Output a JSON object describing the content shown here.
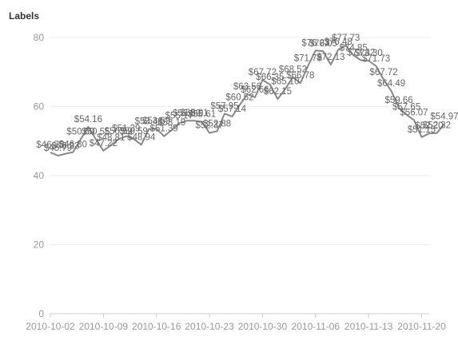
{
  "chart_data": {
    "type": "line",
    "title": "Labels",
    "xlabel": "",
    "ylabel": "",
    "ylim": [
      0,
      80
    ],
    "y_ticks": [
      0,
      20,
      40,
      60,
      80
    ],
    "x_range": [
      "2010-10-02",
      "2010-11-21"
    ],
    "x_ticks": [
      "2010-10-02",
      "2010-10-09",
      "2010-10-16",
      "2010-10-23",
      "2010-10-30",
      "2010-11-06",
      "2010-11-13",
      "2010-11-20"
    ],
    "grid": true,
    "legend": "none",
    "label_prefix": "$",
    "series": [
      {
        "points": [
          [
            "2010-10-02",
            46.73
          ],
          [
            "2010-10-03",
            45.79
          ],
          [
            "2010-10-04",
            46.33
          ],
          [
            "2010-10-05",
            46.8
          ],
          [
            "2010-10-06",
            50.5
          ],
          [
            "2010-10-07",
            54.16
          ],
          [
            "2010-10-08",
            50.55
          ],
          [
            "2010-10-09",
            47.22
          ],
          [
            "2010-10-10",
            48.81
          ],
          [
            "2010-10-11",
            50.59
          ],
          [
            "2010-10-12",
            51.39
          ],
          [
            "2010-10-13",
            50.59
          ],
          [
            "2010-10-14",
            48.94
          ],
          [
            "2010-10-15",
            53.48
          ],
          [
            "2010-10-16",
            53.59
          ],
          [
            "2010-10-17",
            51.39
          ],
          [
            "2010-10-18",
            53.19
          ],
          [
            "2010-10-19",
            55.17
          ],
          [
            "2010-10-20",
            55.89
          ],
          [
            "2010-10-21",
            55.91
          ],
          [
            "2010-10-22",
            55.61
          ],
          [
            "2010-10-23",
            52.37
          ],
          [
            "2010-10-24",
            52.88
          ],
          [
            "2010-10-25",
            57.95
          ],
          [
            "2010-10-26",
            57.14
          ],
          [
            "2010-10-27",
            60.52
          ],
          [
            "2010-10-28",
            63.56
          ],
          [
            "2010-10-29",
            62.66
          ],
          [
            "2010-10-30",
            67.72
          ],
          [
            "2010-10-31",
            66.35
          ],
          [
            "2010-11-01",
            62.15
          ],
          [
            "2010-11-02",
            65.1
          ],
          [
            "2010-11-03",
            68.52
          ],
          [
            "2010-11-04",
            66.78
          ],
          [
            "2010-11-05",
            71.78
          ],
          [
            "2010-11-06",
            76.23
          ],
          [
            "2010-11-07",
            76.05
          ],
          [
            "2010-11-08",
            72.13
          ],
          [
            "2010-11-09",
            76.48
          ],
          [
            "2010-11-10",
            77.73
          ],
          [
            "2010-11-11",
            74.85
          ],
          [
            "2010-11-12",
            73.42
          ],
          [
            "2010-11-13",
            73.3
          ],
          [
            "2010-11-14",
            71.73
          ],
          [
            "2010-11-15",
            67.72
          ],
          [
            "2010-11-16",
            64.49
          ],
          [
            "2010-11-17",
            59.66
          ],
          [
            "2010-11-18",
            57.65
          ],
          [
            "2010-11-19",
            56.07
          ],
          [
            "2010-11-20",
            51.15
          ],
          [
            "2010-11-21",
            52.2
          ],
          [
            "2010-11-22",
            52.32
          ],
          [
            "2010-11-23",
            54.97
          ]
        ]
      }
    ]
  }
}
